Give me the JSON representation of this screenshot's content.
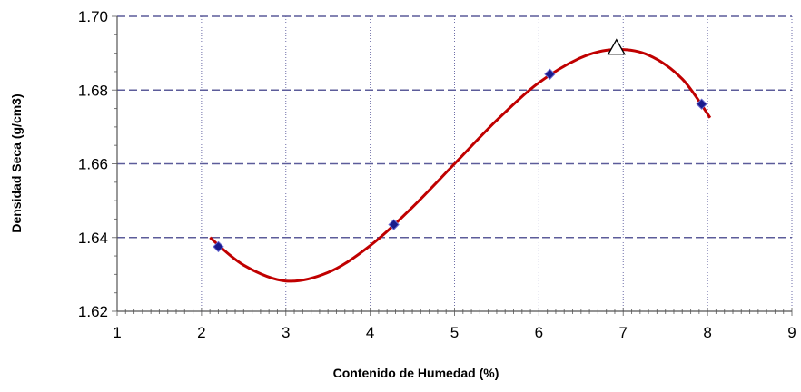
{
  "chart_data": {
    "type": "scatter",
    "xlabel": "Contenido de Humedad (%)",
    "ylabel": "Densidad Seca (g/cm3)",
    "xlim": [
      1,
      9
    ],
    "ylim": [
      1.62,
      1.7
    ],
    "x_ticks": [
      1,
      2,
      3,
      4,
      5,
      6,
      7,
      8,
      9
    ],
    "y_ticks": [
      1.62,
      1.64,
      1.66,
      1.68,
      1.7
    ],
    "x_tick_labels": [
      "1",
      "2",
      "3",
      "4",
      "5",
      "6",
      "7",
      "8",
      "9"
    ],
    "y_tick_labels": [
      "1.62",
      "1.64",
      "1.66",
      "1.68",
      "1.70"
    ],
    "grid": true,
    "series": [
      {
        "marker": "diamond",
        "color": "#1a1a8c",
        "points": [
          {
            "x": 2.2,
            "y": 1.6375
          },
          {
            "x": 4.28,
            "y": 1.6435
          },
          {
            "x": 6.13,
            "y": 1.6843
          },
          {
            "x": 7.93,
            "y": 1.6762
          }
        ]
      },
      {
        "type": "line",
        "color": "#c00000",
        "points": [
          {
            "x": 2.1,
            "y": 1.64
          },
          {
            "x": 2.5,
            "y": 1.6325
          },
          {
            "x": 3.0,
            "y": 1.6282
          },
          {
            "x": 3.5,
            "y": 1.6305
          },
          {
            "x": 4.0,
            "y": 1.6378
          },
          {
            "x": 4.5,
            "y": 1.6482
          },
          {
            "x": 5.0,
            "y": 1.66
          },
          {
            "x": 5.5,
            "y": 1.6718
          },
          {
            "x": 6.0,
            "y": 1.682
          },
          {
            "x": 6.5,
            "y": 1.6888
          },
          {
            "x": 6.9,
            "y": 1.691
          },
          {
            "x": 7.3,
            "y": 1.6895
          },
          {
            "x": 7.7,
            "y": 1.683
          },
          {
            "x": 8.03,
            "y": 1.6725
          }
        ]
      },
      {
        "marker": "triangle",
        "color": "#000000",
        "points": [
          {
            "x": 6.92,
            "y": 1.6912
          }
        ]
      }
    ]
  }
}
